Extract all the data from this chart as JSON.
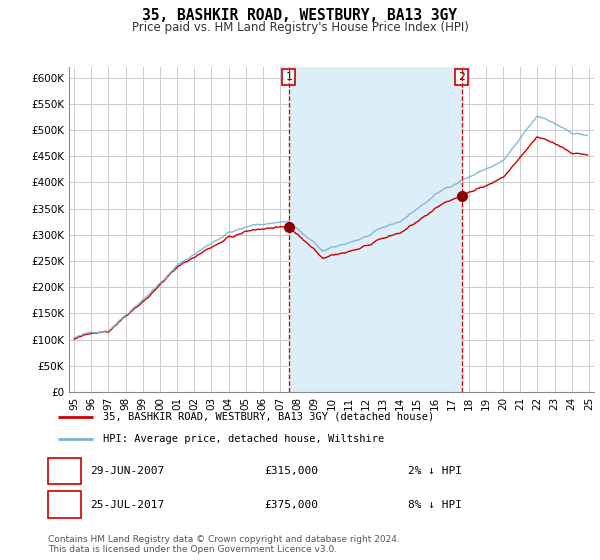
{
  "title": "35, BASHKIR ROAD, WESTBURY, BA13 3GY",
  "subtitle": "Price paid vs. HM Land Registry's House Price Index (HPI)",
  "ylim": [
    0,
    620000
  ],
  "yticks": [
    0,
    50000,
    100000,
    150000,
    200000,
    250000,
    300000,
    350000,
    400000,
    450000,
    500000,
    550000,
    600000
  ],
  "ytick_labels": [
    "£0",
    "£50K",
    "£100K",
    "£150K",
    "£200K",
    "£250K",
    "£300K",
    "£350K",
    "£400K",
    "£450K",
    "£500K",
    "£550K",
    "£600K"
  ],
  "hpi_color": "#7ab3d4",
  "price_color": "#cc0000",
  "marker_color": "#8b0000",
  "dashed_color": "#cc0000",
  "shade_color": "#dceef7",
  "transaction1": {
    "date": "29-JUN-2007",
    "price": 315000,
    "label": "1",
    "year": 2007.5
  },
  "transaction2": {
    "date": "25-JUL-2017",
    "price": 375000,
    "label": "2",
    "year": 2017.58
  },
  "legend_label1": "35, BASHKIR ROAD, WESTBURY, BA13 3GY (detached house)",
  "legend_label2": "HPI: Average price, detached house, Wiltshire",
  "footer": "Contains HM Land Registry data © Crown copyright and database right 2024.\nThis data is licensed under the Open Government Licence v3.0.",
  "background_color": "#ffffff",
  "grid_color": "#cccccc"
}
